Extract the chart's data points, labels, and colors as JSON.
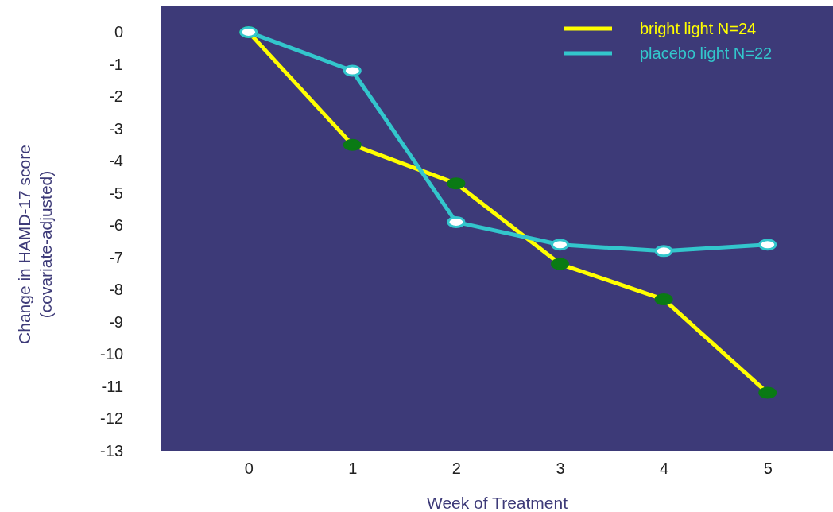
{
  "chart_data": {
    "type": "line",
    "xlabel": "Week of Treatment",
    "ylabel": "Change in HAMD-17 score\n(covariate-adjusted)",
    "x": [
      0,
      1,
      2,
      3,
      4,
      5
    ],
    "series": [
      {
        "name": "bright light N=24",
        "color": "#ffff00",
        "values": [
          0,
          -3.5,
          -4.7,
          -7.2,
          -8.3,
          -11.2
        ]
      },
      {
        "name": "placebo light N=22",
        "color": "#33c6cc",
        "values": [
          0,
          -1.2,
          -5.9,
          -6.6,
          -6.8,
          -6.6
        ]
      }
    ],
    "xlim": [
      -0.84,
      5.63
    ],
    "ylim": [
      -13,
      0.8
    ],
    "xticks": [
      0,
      1,
      2,
      3,
      4,
      5
    ],
    "yticks": [
      0,
      -1,
      -2,
      -3,
      -4,
      -5,
      -6,
      -7,
      -8,
      -9,
      -10,
      -11,
      -12,
      -13
    ],
    "grid": false,
    "legend": "top right",
    "marker": "circle",
    "line_style": "solid"
  }
}
